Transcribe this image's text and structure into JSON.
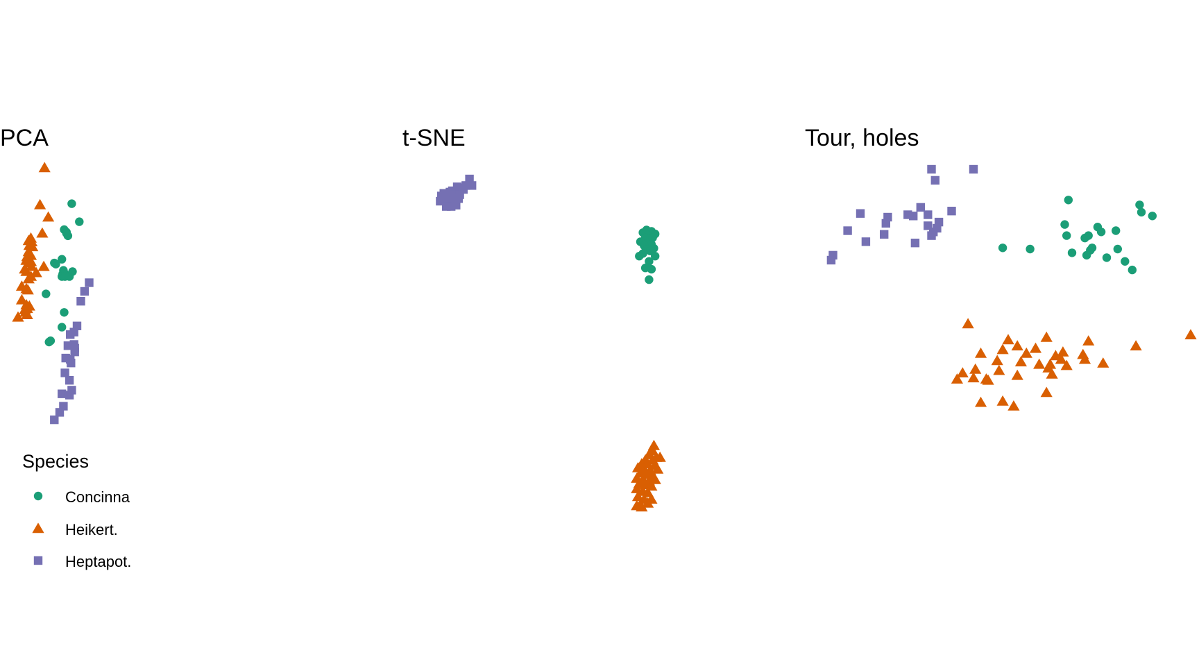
{
  "colors": {
    "Concinna": "#1b9e77",
    "Heikert.": "#d95f02",
    "Heptapot.": "#7570b3",
    "background": "#ffffff"
  },
  "legend": {
    "title": "Species",
    "placement": "bottom-left",
    "items": [
      {
        "label": "Concinna",
        "shape": "circle"
      },
      {
        "label": "Heikert.",
        "shape": "triangle"
      },
      {
        "label": "Heptapot.",
        "shape": "square"
      }
    ]
  },
  "chart_data": [
    {
      "type": "scatter",
      "title": "PCA",
      "xlabel": "",
      "ylabel": "",
      "axes_shown": false,
      "grid": false,
      "xlim": [
        0,
        100
      ],
      "ylim": [
        0,
        100
      ],
      "series": [
        {
          "name": "Concinna",
          "marker": "circle",
          "points": [
            [
              35.5,
              85.5
            ],
            [
              40.5,
              78.2
            ],
            [
              30.5,
              75.0
            ],
            [
              32.0,
              74.0
            ],
            [
              33.0,
              72.5
            ],
            [
              32.0,
              73.5
            ],
            [
              29.0,
              63.0
            ],
            [
              24.0,
              61.5
            ],
            [
              25.0,
              61.0
            ],
            [
              30.0,
              58.5
            ],
            [
              29.5,
              57.0
            ],
            [
              30.5,
              57.5
            ],
            [
              29.0,
              56.0
            ],
            [
              31.0,
              56.0
            ],
            [
              34.0,
              56.0
            ],
            [
              36.0,
              58.0
            ],
            [
              18.5,
              49.0
            ],
            [
              30.5,
              41.5
            ],
            [
              29.0,
              35.5
            ],
            [
              20.5,
              29.5
            ],
            [
              21.5,
              30.0
            ]
          ]
        },
        {
          "name": "Heikert.",
          "marker": "triangle",
          "points": [
            [
              17.5,
              100.0
            ],
            [
              14.5,
              85.0
            ],
            [
              8.5,
              71.5
            ],
            [
              7.0,
              70.5
            ],
            [
              9.0,
              70.0
            ],
            [
              7.5,
              68.5
            ],
            [
              9.5,
              68.0
            ],
            [
              7.0,
              66.0
            ],
            [
              8.5,
              64.5
            ],
            [
              6.0,
              64.0
            ],
            [
              7.0,
              63.5
            ],
            [
              5.5,
              62.5
            ],
            [
              8.5,
              62.0
            ],
            [
              7.0,
              61.5
            ],
            [
              4.5,
              59.0
            ],
            [
              9.0,
              60.0
            ],
            [
              5.5,
              58.0
            ],
            [
              12.0,
              57.5
            ],
            [
              17.0,
              60.0
            ],
            [
              8.5,
              56.0
            ],
            [
              7.0,
              55.0
            ],
            [
              2.5,
              52.0
            ],
            [
              5.5,
              51.0
            ],
            [
              6.5,
              50.5
            ],
            [
              2.5,
              46.5
            ],
            [
              5.5,
              44.5
            ],
            [
              7.5,
              44.0
            ],
            [
              4.5,
              42.5
            ],
            [
              6.0,
              43.0
            ],
            [
              5.0,
              41.5
            ],
            [
              6.0,
              40.5
            ],
            [
              0.0,
              39.5
            ],
            [
              16.0,
              73.5
            ],
            [
              20.0,
              80.0
            ]
          ]
        },
        {
          "name": "Heptapot.",
          "marker": "square",
          "points": [
            [
              47.0,
              53.5
            ],
            [
              44.0,
              50.0
            ],
            [
              41.5,
              46.0
            ],
            [
              39.0,
              36.0
            ],
            [
              37.0,
              33.5
            ],
            [
              34.5,
              32.5
            ],
            [
              33.0,
              28.0
            ],
            [
              37.0,
              28.5
            ],
            [
              37.5,
              27.0
            ],
            [
              37.5,
              25.5
            ],
            [
              34.5,
              22.5
            ],
            [
              31.5,
              23.0
            ],
            [
              35.0,
              21.0
            ],
            [
              31.0,
              17.0
            ],
            [
              34.0,
              14.0
            ],
            [
              35.5,
              10.0
            ],
            [
              29.0,
              8.5
            ],
            [
              34.0,
              8.0
            ],
            [
              27.5,
              1.0
            ],
            [
              30.0,
              3.5
            ],
            [
              24.0,
              -2.0
            ]
          ]
        }
      ]
    },
    {
      "type": "scatter",
      "title": "t-SNE",
      "xlabel": "",
      "ylabel": "",
      "axes_shown": false,
      "grid": false,
      "xlim": [
        0,
        100
      ],
      "ylim": [
        0,
        100
      ],
      "series": [
        {
          "name": "Concinna",
          "marker": "circle",
          "points": [
            [
              92.0,
              80.5
            ],
            [
              94.0,
              80.0
            ],
            [
              90.5,
              79.5
            ],
            [
              95.5,
              79.0
            ],
            [
              92.5,
              78.5
            ],
            [
              91.5,
              77.5
            ],
            [
              94.5,
              77.5
            ],
            [
              89.5,
              76.0
            ],
            [
              93.0,
              75.5
            ],
            [
              94.0,
              75.0
            ],
            [
              91.0,
              74.5
            ],
            [
              92.0,
              73.0
            ],
            [
              95.0,
              73.5
            ],
            [
              93.5,
              72.5
            ],
            [
              90.5,
              71.5
            ],
            [
              89.0,
              70.5
            ],
            [
              95.5,
              70.5
            ],
            [
              93.0,
              68.5
            ],
            [
              91.5,
              66.0
            ],
            [
              94.0,
              65.5
            ],
            [
              93.0,
              61.5
            ]
          ]
        },
        {
          "name": "Heikert.",
          "marker": "triangle",
          "points": [
            [
              95.0,
              -2.0
            ],
            [
              94.5,
              -4.0
            ],
            [
              93.0,
              -5.5
            ],
            [
              96.0,
              -6.5
            ],
            [
              91.5,
              -7.5
            ],
            [
              94.5,
              -7.5
            ],
            [
              97.5,
              -6.5
            ],
            [
              90.0,
              -9.0
            ],
            [
              92.5,
              -9.0
            ],
            [
              95.5,
              -9.5
            ],
            [
              88.5,
              -10.5
            ],
            [
              91.0,
              -11.0
            ],
            [
              93.5,
              -11.5
            ],
            [
              96.5,
              -11.0
            ],
            [
              89.5,
              -12.5
            ],
            [
              92.0,
              -13.0
            ],
            [
              94.5,
              -13.5
            ],
            [
              88.0,
              -14.5
            ],
            [
              90.5,
              -15.0
            ],
            [
              93.0,
              -15.5
            ],
            [
              95.5,
              -15.0
            ],
            [
              89.0,
              -16.5
            ],
            [
              91.5,
              -17.0
            ],
            [
              94.0,
              -17.5
            ],
            [
              88.0,
              -18.5
            ],
            [
              90.5,
              -19.5
            ],
            [
              92.5,
              -20.0
            ],
            [
              88.5,
              -21.5
            ],
            [
              91.0,
              -22.5
            ],
            [
              89.5,
              -24.5
            ],
            [
              88.0,
              -25.0
            ],
            [
              90.0,
              -25.5
            ],
            [
              92.5,
              -24.0
            ],
            [
              94.0,
              -22.5
            ]
          ]
        },
        {
          "name": "Heptapot.",
          "marker": "square",
          "points": [
            [
              19.5,
              100.0
            ],
            [
              20.5,
              97.5
            ],
            [
              18.0,
              97.5
            ],
            [
              15.0,
              96.5
            ],
            [
              14.5,
              97.0
            ],
            [
              17.0,
              96.0
            ],
            [
              12.5,
              95.5
            ],
            [
              11.5,
              95.0
            ],
            [
              9.0,
              94.5
            ],
            [
              8.0,
              93.5
            ],
            [
              10.5,
              93.5
            ],
            [
              13.5,
              94.0
            ],
            [
              15.5,
              94.0
            ],
            [
              7.5,
              91.5
            ],
            [
              9.5,
              92.0
            ],
            [
              11.5,
              91.5
            ],
            [
              13.5,
              91.0
            ],
            [
              15.0,
              92.5
            ],
            [
              10.0,
              89.5
            ],
            [
              12.0,
              89.5
            ],
            [
              14.0,
              90.0
            ]
          ]
        }
      ]
    },
    {
      "type": "scatter",
      "title": "Tour, holes",
      "xlabel": "",
      "ylabel": "",
      "axes_shown": false,
      "grid": false,
      "xlim": [
        0,
        100
      ],
      "ylim": [
        0,
        100
      ],
      "series": [
        {
          "name": "Concinna",
          "marker": "circle",
          "points": [
            [
              66.5,
              87.5
            ],
            [
              86.0,
              85.5
            ],
            [
              86.5,
              82.5
            ],
            [
              89.5,
              81.0
            ],
            [
              65.5,
              77.5
            ],
            [
              74.5,
              76.5
            ],
            [
              75.5,
              74.5
            ],
            [
              72.0,
              73.0
            ],
            [
              66.0,
              73.0
            ],
            [
              79.5,
              75.0
            ],
            [
              71.0,
              72.0
            ],
            [
              48.5,
              68.0
            ],
            [
              56.0,
              67.5
            ],
            [
              73.0,
              68.0
            ],
            [
              72.5,
              67.0
            ],
            [
              80.0,
              67.5
            ],
            [
              67.5,
              66.0
            ],
            [
              71.5,
              65.0
            ],
            [
              77.0,
              64.0
            ],
            [
              82.0,
              62.5
            ],
            [
              84.0,
              59.0
            ]
          ]
        },
        {
          "name": "Heikert.",
          "marker": "triangle",
          "points": [
            [
              39.0,
              37.0
            ],
            [
              60.5,
              31.5
            ],
            [
              100.0,
              32.5
            ],
            [
              50.0,
              30.5
            ],
            [
              72.0,
              30.0
            ],
            [
              85.0,
              28.0
            ],
            [
              52.5,
              28.0
            ],
            [
              57.5,
              27.0
            ],
            [
              48.5,
              26.5
            ],
            [
              65.0,
              25.5
            ],
            [
              42.5,
              25.0
            ],
            [
              55.0,
              25.0
            ],
            [
              64.5,
              22.5
            ],
            [
              70.5,
              24.5
            ],
            [
              63.0,
              24.0
            ],
            [
              71.0,
              22.5
            ],
            [
              47.0,
              22.0
            ],
            [
              53.5,
              21.5
            ],
            [
              58.5,
              20.5
            ],
            [
              61.5,
              20.5
            ],
            [
              66.0,
              20.0
            ],
            [
              76.0,
              21.0
            ],
            [
              61.0,
              19.0
            ],
            [
              41.0,
              18.5
            ],
            [
              47.5,
              18.0
            ],
            [
              37.5,
              17.0
            ],
            [
              62.0,
              16.5
            ],
            [
              52.5,
              16.0
            ],
            [
              40.5,
              15.0
            ],
            [
              44.5,
              14.0
            ],
            [
              44.0,
              14.5
            ],
            [
              36.0,
              14.5
            ],
            [
              60.5,
              9.0
            ],
            [
              48.5,
              5.5
            ],
            [
              51.5,
              3.5
            ],
            [
              42.5,
              5.0
            ]
          ]
        },
        {
          "name": "Heptapot.",
          "marker": "square",
          "points": [
            [
              29.0,
              100.0
            ],
            [
              40.5,
              100.0
            ],
            [
              30.0,
              95.5
            ],
            [
              26.0,
              84.5
            ],
            [
              34.5,
              83.0
            ],
            [
              9.5,
              82.0
            ],
            [
              17.0,
              80.5
            ],
            [
              22.5,
              81.5
            ],
            [
              28.0,
              81.5
            ],
            [
              24.0,
              81.0
            ],
            [
              16.5,
              78.0
            ],
            [
              31.0,
              78.5
            ],
            [
              28.0,
              77.0
            ],
            [
              30.5,
              76.0
            ],
            [
              6.0,
              75.0
            ],
            [
              29.5,
              74.5
            ],
            [
              16.0,
              73.5
            ],
            [
              29.0,
              73.0
            ],
            [
              11.0,
              70.5
            ],
            [
              24.5,
              70.0
            ],
            [
              2.0,
              65.0
            ],
            [
              1.5,
              63.0
            ]
          ]
        }
      ]
    }
  ]
}
